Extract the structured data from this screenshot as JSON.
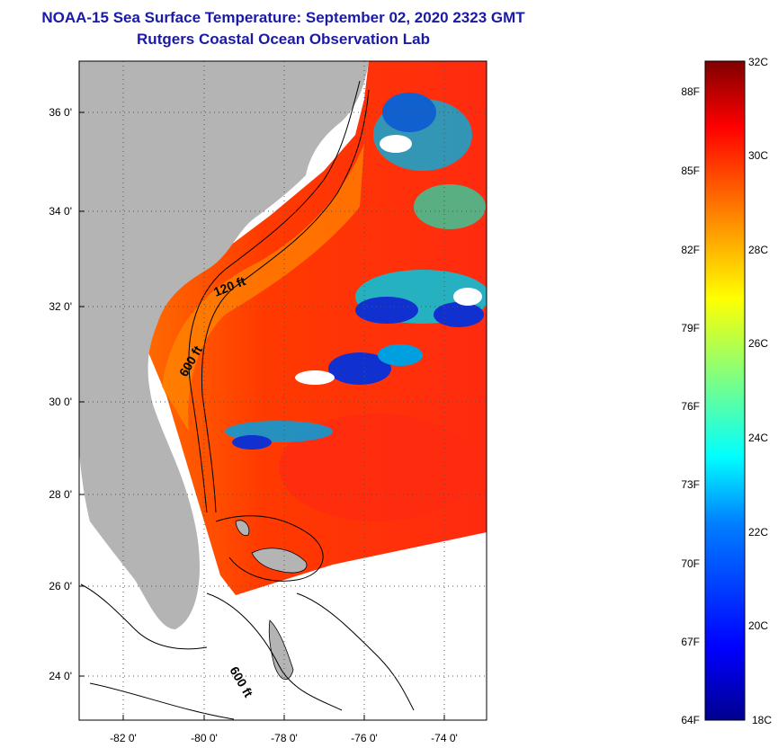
{
  "title": "NOAA-15 Sea Surface Temperature:  September 02, 2020 2323 GMT",
  "subtitle": "Rutgers Coastal Ocean Observation Lab",
  "map": {
    "lat_ticks": [
      "36 0'",
      "34 0'",
      "32 0'",
      "30 0'",
      "28 0'",
      "26 0'",
      "24 0'"
    ],
    "lon_ticks": [
      "-82 0'",
      "-80 0'",
      "-78 0'",
      "-76 0'",
      "-74 0'"
    ],
    "contour_labels": [
      "120 ft",
      "600 ft",
      "600 ft"
    ],
    "land_color": "#b4b4b4",
    "ocean_colors": [
      "#ff3a00",
      "#ff6a00",
      "#ffb000",
      "#00c8c8",
      "#1030d0"
    ]
  },
  "colorbar": {
    "celsius_labels": [
      "32C",
      "30C",
      "28C",
      "26C",
      "24C",
      "22C",
      "20C",
      "18C"
    ],
    "fahrenheit_labels": [
      "88F",
      "85F",
      "82F",
      "79F",
      "76F",
      "73F",
      "70F",
      "67F",
      "64F"
    ],
    "colors": [
      "#00008f",
      "#0000ff",
      "#0080ff",
      "#00ffff",
      "#80ff80",
      "#ffff00",
      "#ff8000",
      "#ff0000",
      "#800000"
    ]
  }
}
